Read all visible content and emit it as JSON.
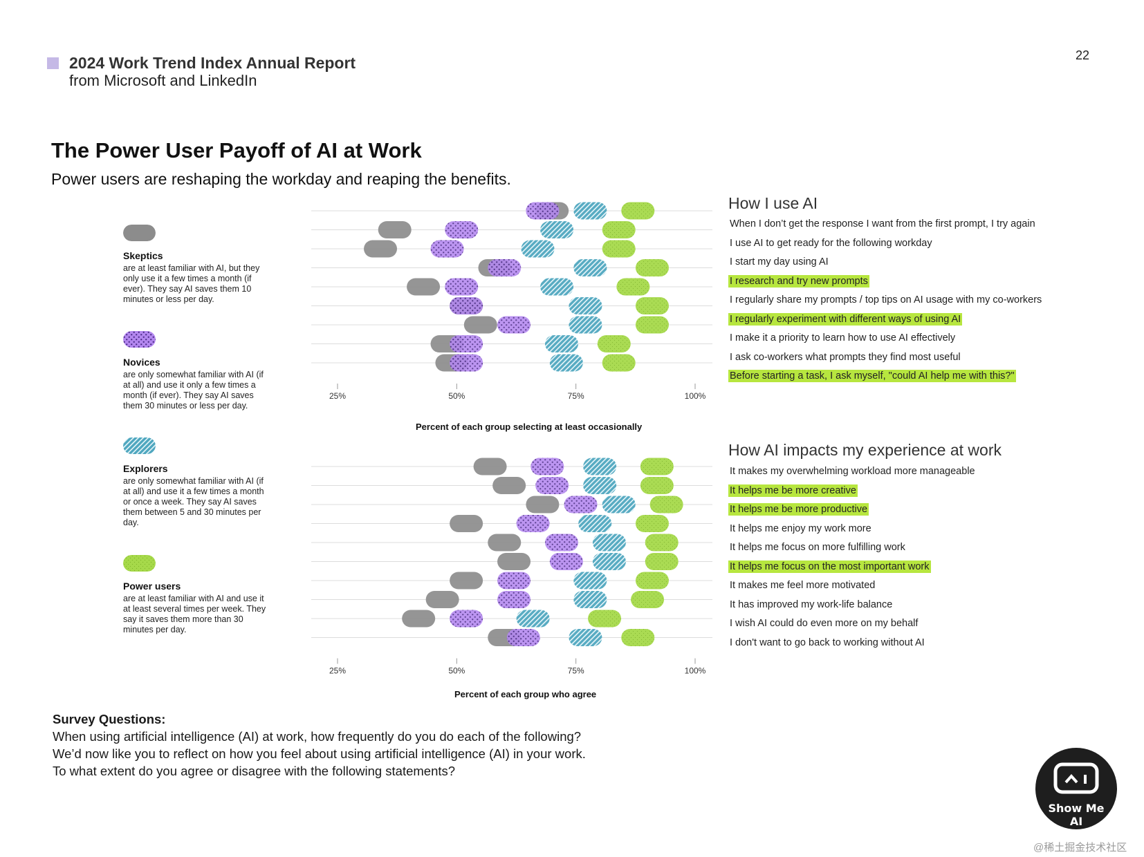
{
  "header": {
    "report_title": "2024 Work Trend Index Annual Report",
    "report_subtitle": "from Microsoft and LinkedIn",
    "page_number": "22"
  },
  "title": "The Power User Payoff of AI at Work",
  "subtitle": "Power users are reshaping the workday and reaping the benefits.",
  "colors": {
    "skeptics": "#8c8c8c",
    "novices": "#b387ef",
    "explorers": "#4fa7bf",
    "power_users": "#a6d94a",
    "highlight": "#b7e63f",
    "header_square": "#c5b9e6"
  },
  "legend": [
    {
      "key": "skeptics",
      "name": "Skeptics",
      "description": "are at least familiar with AI, but they only use it a few times a month (if ever). They say AI saves them 10 minutes or less per day."
    },
    {
      "key": "novices",
      "name": "Novices",
      "description": "are only somewhat familiar with AI (if at all) and use it only a few times a month (if ever). They say AI saves them 30 minutes or less per day."
    },
    {
      "key": "explorers",
      "name": "Explorers",
      "description": "are only somewhat familiar with AI (if at all) and use it a few times a month or once a week. They say AI saves them between 5 and 30 minutes per day."
    },
    {
      "key": "power_users",
      "name": "Power users",
      "description": "are at least familiar with AI and use it at least several times per week. They say it saves them more than 30 minutes per day."
    }
  ],
  "chart_data": [
    {
      "type": "scatter",
      "title": "How I use AI",
      "xlabel": "Percent of each group selecting at least occasionally",
      "xlim": [
        25,
        100
      ],
      "xticks": [
        "25%",
        "50%",
        "75%",
        "100%"
      ],
      "categories": [
        "When I don’t get the response I want from the first prompt, I try again",
        "I use AI to get ready for the following workday",
        "I start my day using AI",
        "I research and try new prompts",
        "I regularly share my prompts / top tips on AI usage with my co-workers",
        "I regularly experiment with different ways of using AI",
        "I make it a priority to learn how to use AI effectively",
        "I ask co-workers what prompts they find most useful",
        "Before starting a task, I ask myself, \"could AI help me with this?\""
      ],
      "highlighted": [
        false,
        false,
        false,
        true,
        false,
        true,
        false,
        false,
        true
      ],
      "series": [
        {
          "name": "Skeptics",
          "key": "skeptics",
          "values": [
            70,
            37,
            34,
            58,
            43,
            52,
            55,
            48,
            49
          ]
        },
        {
          "name": "Novices",
          "key": "novices",
          "values": [
            68,
            51,
            48,
            60,
            51,
            52,
            62,
            52,
            52
          ]
        },
        {
          "name": "Explorers",
          "key": "explorers",
          "values": [
            78,
            71,
            67,
            78,
            71,
            77,
            77,
            72,
            73
          ]
        },
        {
          "name": "Power users",
          "key": "power_users",
          "values": [
            88,
            84,
            84,
            91,
            87,
            91,
            91,
            83,
            84
          ]
        }
      ]
    },
    {
      "type": "scatter",
      "title": "How AI impacts my experience at work",
      "xlabel": "Percent of each group who agree",
      "xlim": [
        25,
        100
      ],
      "xticks": [
        "25%",
        "50%",
        "75%",
        "100%"
      ],
      "categories": [
        "It makes my overwhelming workload more manageable",
        "It helps me be more creative",
        "It helps me be more productive",
        "It helps me enjoy my work more",
        "It helps me focus on more fulfilling work",
        "It helps me focus on the most important work",
        "It makes me feel more motivated",
        "It has improved my work-life balance",
        "I wish AI could do even more on my behalf",
        "I don't want to go back to working without AI"
      ],
      "highlighted": [
        false,
        true,
        true,
        false,
        false,
        true,
        false,
        false,
        false,
        false
      ],
      "series": [
        {
          "name": "Skeptics",
          "key": "skeptics",
          "values": [
            57,
            61,
            68,
            52,
            60,
            62,
            52,
            47,
            42,
            60
          ]
        },
        {
          "name": "Novices",
          "key": "novices",
          "values": [
            69,
            70,
            76,
            66,
            72,
            73,
            62,
            62,
            52,
            64
          ]
        },
        {
          "name": "Explorers",
          "key": "explorers",
          "values": [
            80,
            80,
            84,
            79,
            82,
            82,
            78,
            78,
            66,
            77
          ]
        },
        {
          "name": "Power users",
          "key": "power_users",
          "values": [
            92,
            92,
            94,
            91,
            93,
            93,
            91,
            90,
            81,
            88
          ]
        }
      ]
    }
  ],
  "survey": {
    "heading": "Survey Questions:",
    "lines": [
      "When using artificial intelligence (AI) at work, how frequently do you do each of the following?",
      "We’d now like you to reflect on how you feel about using artificial intelligence (AI) in your work.",
      "To what extent do you agree or disagree with the following statements?"
    ]
  },
  "badge": {
    "text": "Show Me AI",
    "icon": "robot-face-icon"
  },
  "watermark": "@稀土掘金技术社区"
}
